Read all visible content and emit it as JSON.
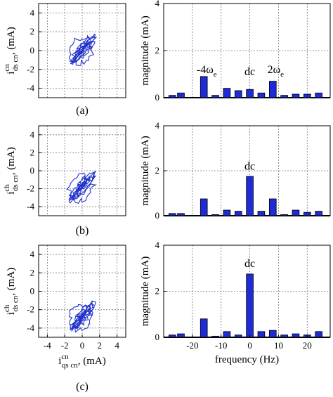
{
  "chart_data": [
    {
      "type": "scatter",
      "panel": "a-left",
      "description_free": true,
      "xlim": [
        -5,
        5
      ],
      "ylim": [
        -5,
        5
      ],
      "x_ticks": [],
      "y_ticks": [
        "-4",
        "-2",
        "0",
        "2",
        "4"
      ],
      "ylabel": {
        "main": "i",
        "sup": "cn",
        "sub": "ds cn",
        "unit": ", (mA)"
      },
      "trajectory_center": [
        0,
        0
      ],
      "trajectory_radius": 1.4,
      "trajectory_points": 260,
      "trajectory_seed": 1,
      "grid": true
    },
    {
      "type": "bar",
      "panel": "a-right",
      "x": [
        -27,
        -24,
        -16,
        -12,
        -8,
        -4,
        0,
        4,
        8,
        12,
        16,
        20,
        24
      ],
      "values": [
        0.1,
        0.2,
        0.9,
        0.1,
        0.4,
        0.3,
        0.35,
        0.2,
        0.7,
        0.1,
        0.15,
        0.15,
        0.2
      ],
      "xlim": [
        -30,
        28
      ],
      "ylim": [
        0,
        4
      ],
      "x_ticks": [],
      "y_ticks": [
        "0",
        "2",
        "4"
      ],
      "ylabel": "magnitude (mA)",
      "annotations": [
        {
          "text": "-4ω",
          "sub": "e",
          "x": -15,
          "y": 1.05
        },
        {
          "text": "dc",
          "sub": "",
          "x": 0,
          "y": 0.95
        },
        {
          "text": "2ω",
          "sub": "e",
          "x": 9,
          "y": 1.05
        }
      ],
      "grid": true
    },
    {
      "type": "scatter",
      "panel": "b-left",
      "xlim": [
        -5,
        5
      ],
      "ylim": [
        -5,
        5
      ],
      "x_ticks": [],
      "y_ticks": [
        "-4",
        "-2",
        "0",
        "2",
        "4"
      ],
      "ylabel": {
        "main": "i",
        "sup": "ch",
        "sub": "ds cn",
        "unit": ", (mA)"
      },
      "trajectory_center": [
        0,
        -1.8
      ],
      "trajectory_radius": 1.5,
      "trajectory_points": 240,
      "trajectory_seed": 2,
      "grid": true
    },
    {
      "type": "bar",
      "panel": "b-right",
      "x": [
        -27,
        -24,
        -16,
        -12,
        -8,
        -4,
        0,
        4,
        8,
        12,
        16,
        20,
        24
      ],
      "values": [
        0.1,
        0.1,
        0.75,
        0.05,
        0.25,
        0.2,
        1.75,
        0.2,
        0.75,
        0.05,
        0.25,
        0.15,
        0.2
      ],
      "xlim": [
        -30,
        28
      ],
      "ylim": [
        0,
        4
      ],
      "x_ticks": [],
      "y_ticks": [
        "0",
        "2",
        "4"
      ],
      "ylabel": "magnitude (mA)",
      "annotations": [
        {
          "text": "dc",
          "sub": "",
          "x": 0,
          "y": 2.05
        }
      ],
      "grid": true
    },
    {
      "type": "scatter",
      "panel": "c-left",
      "xlim": [
        -5,
        5
      ],
      "ylim": [
        -5,
        5
      ],
      "x_ticks": [
        "-4",
        "-2",
        "0",
        "2",
        "4"
      ],
      "y_ticks": [
        "-4",
        "-2",
        "0",
        "2",
        "4"
      ],
      "ylabel": {
        "main": "i",
        "sup": "ch",
        "sub": "ds cn",
        "unit": ", (mA)"
      },
      "xlabel": {
        "main": "i",
        "sup": "cn",
        "sub": "qs cn",
        "unit": ", (mA)"
      },
      "trajectory_center": [
        0,
        -2.8
      ],
      "trajectory_radius": 1.4,
      "trajectory_points": 240,
      "trajectory_seed": 3,
      "grid": true
    },
    {
      "type": "bar",
      "panel": "c-right",
      "x": [
        -27,
        -24,
        -16,
        -12,
        -8,
        -4,
        0,
        4,
        8,
        12,
        16,
        20,
        24
      ],
      "values": [
        0.1,
        0.15,
        0.8,
        0.05,
        0.25,
        0.1,
        2.75,
        0.25,
        0.3,
        0.1,
        0.15,
        0.1,
        0.25
      ],
      "xlim": [
        -30,
        28
      ],
      "ylim": [
        0,
        4
      ],
      "x_ticks": [
        "-20",
        "-10",
        "0",
        "10",
        "20"
      ],
      "y_ticks": [
        "0",
        "2",
        "4"
      ],
      "ylabel": "magnitude (mA)",
      "xlabel": "frequency (Hz)",
      "annotations": [
        {
          "text": "dc",
          "sub": "",
          "x": 0,
          "y": 3.05
        }
      ],
      "grid": true
    }
  ],
  "panel_labels": [
    "(a)",
    "(b)",
    "(c)"
  ],
  "colors": {
    "trace": "#2233cc",
    "bar": "#1f2bd6",
    "grid": "#777777"
  }
}
